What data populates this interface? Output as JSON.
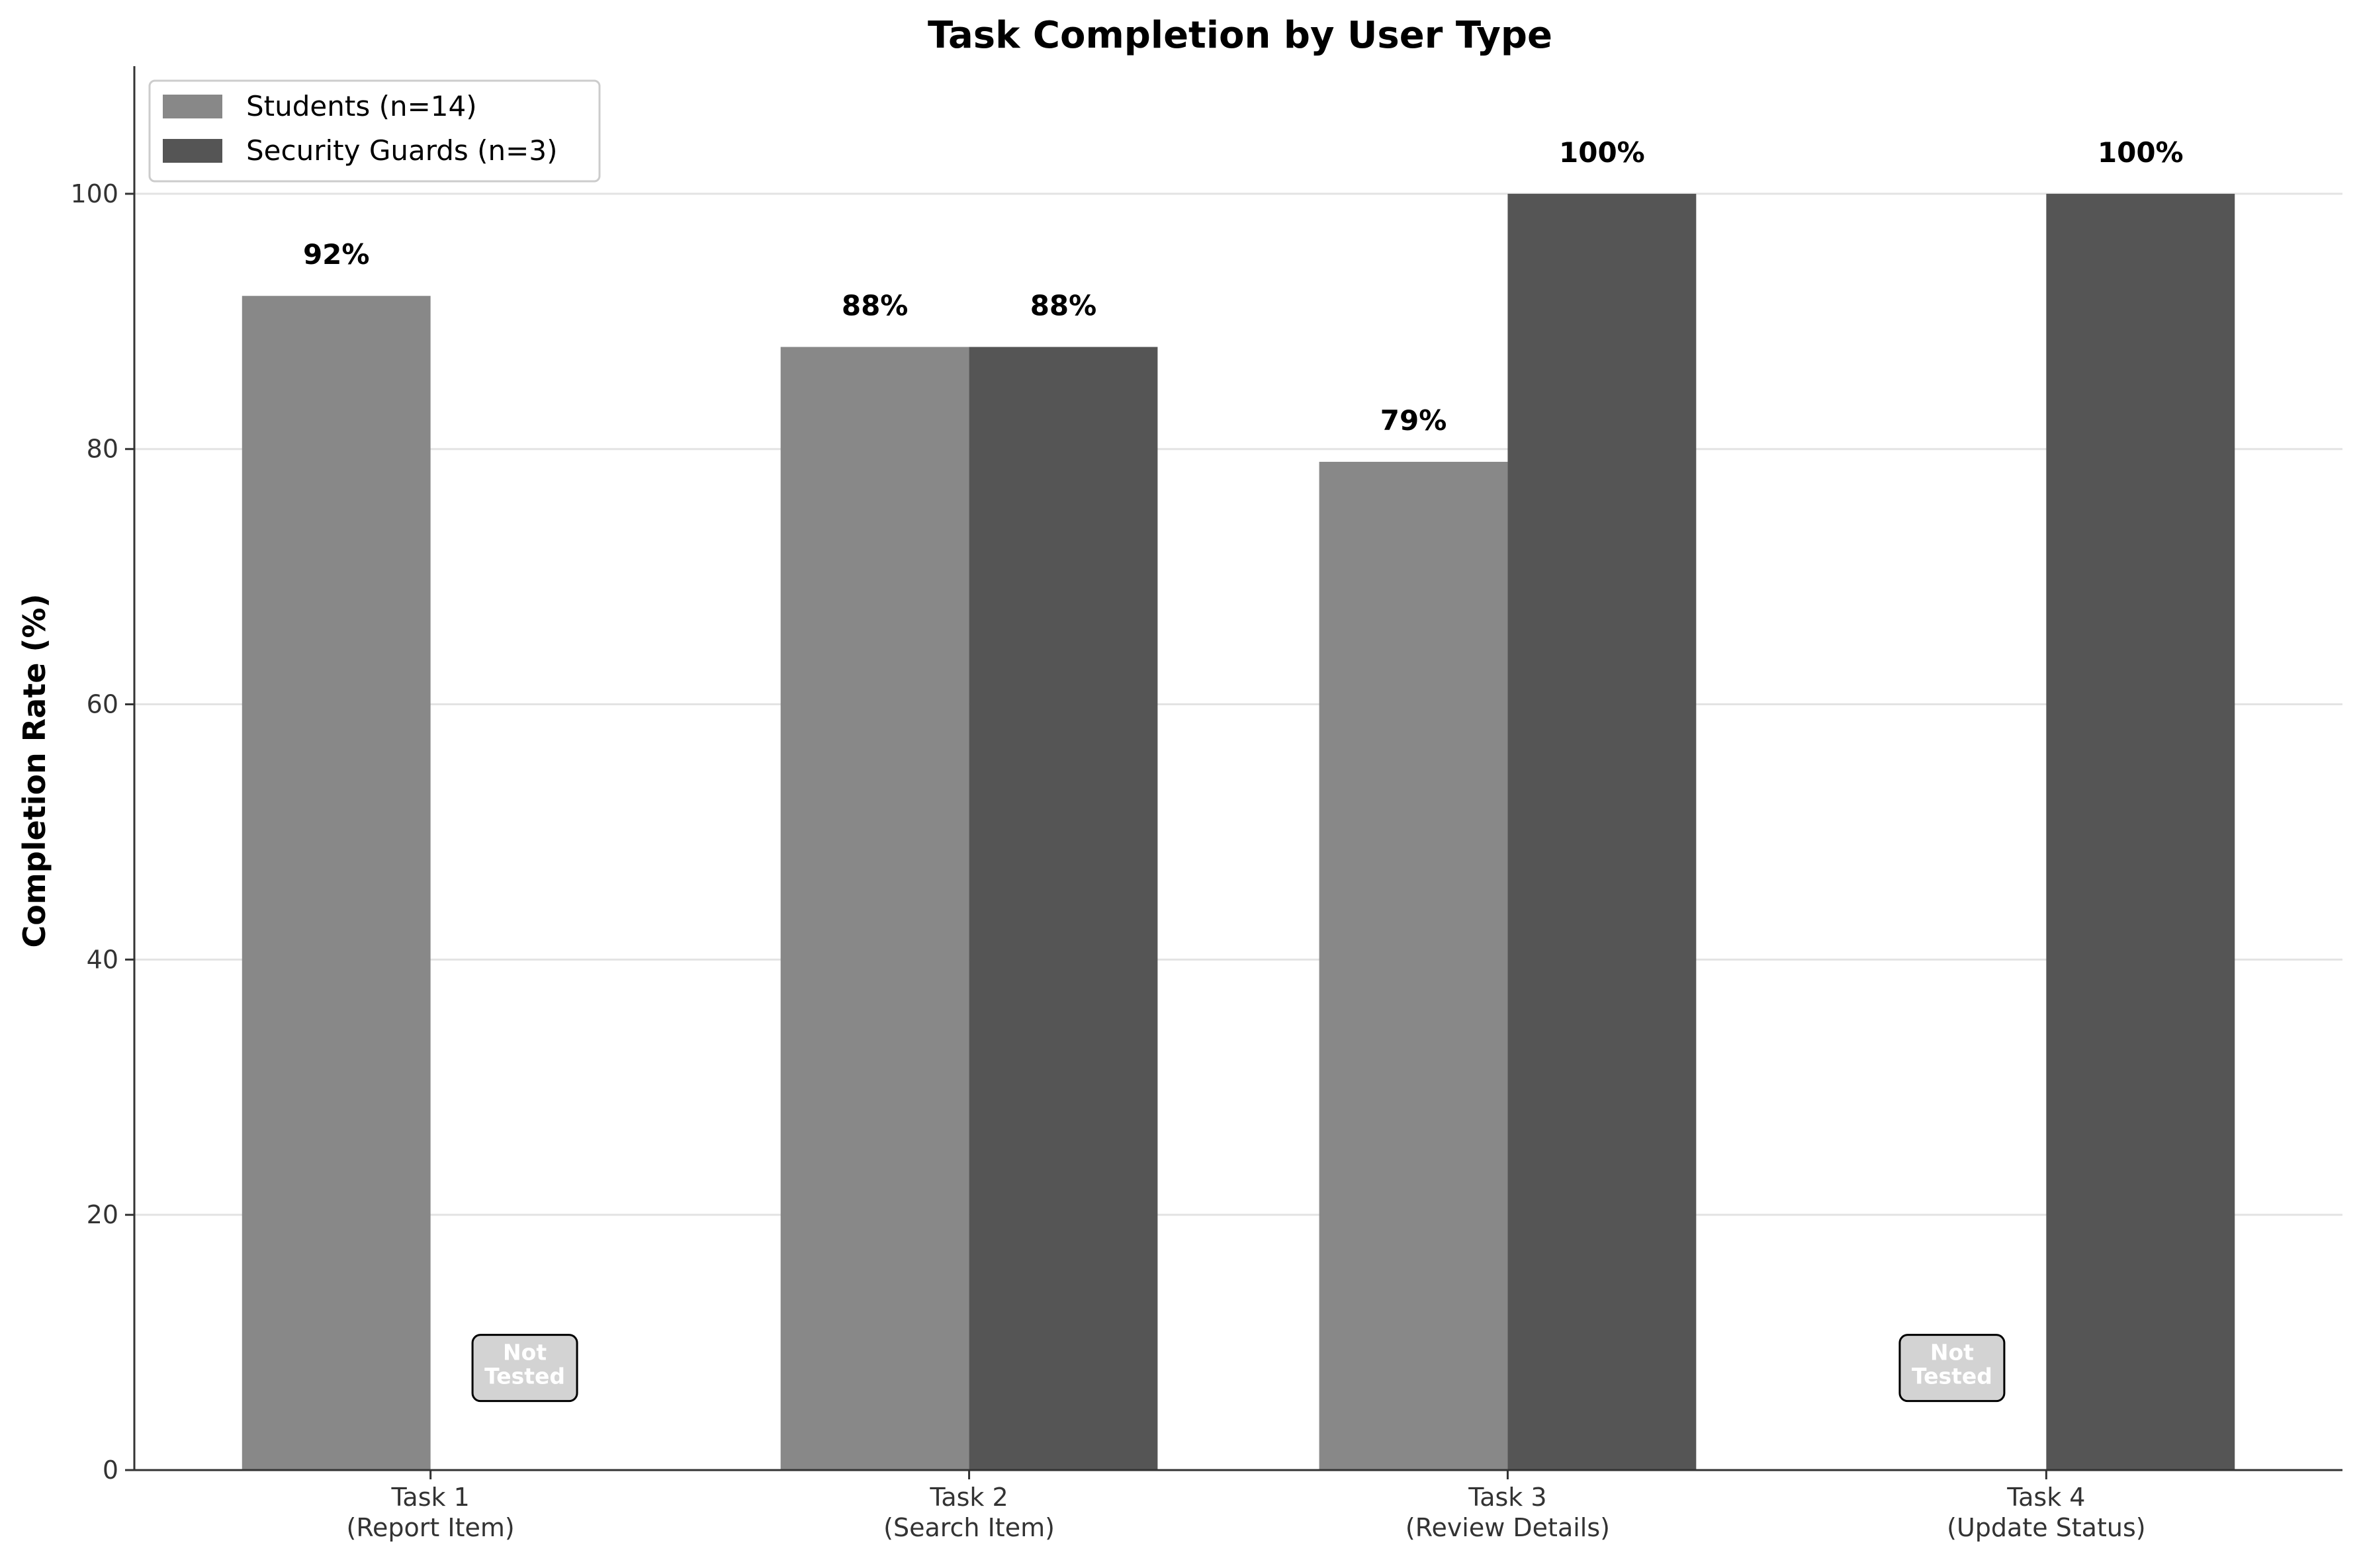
{
  "chart_data": {
    "type": "bar",
    "title": "Task Completion by User Type",
    "xlabel": "",
    "ylabel": "Completion Rate (%)",
    "ylim": [
      0,
      110
    ],
    "yticks": [
      0,
      20,
      40,
      60,
      80,
      100
    ],
    "categories": [
      "Task 1\n(Report Item)",
      "Task 2\n(Search Item)",
      "Task 3\n(Review Details)",
      "Task 4\n(Update Status)"
    ],
    "series": [
      {
        "name": "Students (n=14)",
        "color": "#888888",
        "values": [
          92,
          88,
          79,
          null
        ],
        "labels": [
          "92%",
          "88%",
          "79%",
          null
        ]
      },
      {
        "name": "Security Guards (n=3)",
        "color": "#555555",
        "values": [
          null,
          88,
          100,
          100
        ],
        "labels": [
          null,
          "88%",
          "100%",
          "100%"
        ]
      }
    ],
    "missing_label": "Not\nTested",
    "grid": "horizontal",
    "legend_position": "top-left"
  }
}
